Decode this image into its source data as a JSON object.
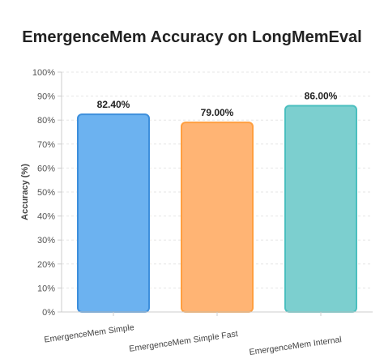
{
  "chart_data": {
    "type": "bar",
    "title": "EmergenceMem Accuracy on LongMemEval",
    "xlabel": "",
    "ylabel": "Accuracy (%)",
    "ylim": [
      0,
      100
    ],
    "yticks": [
      0,
      10,
      20,
      30,
      40,
      50,
      60,
      70,
      80,
      90,
      100
    ],
    "ytick_suffix": "%",
    "grid": true,
    "legend": "none",
    "categories": [
      "EmergenceMem Simple",
      "EmergenceMem Simple Fast",
      "EmergenceMem Internal"
    ],
    "values": [
      82.4,
      79.0,
      86.0
    ],
    "data_labels": [
      "82.40%",
      "79.00%",
      "86.00%"
    ],
    "bar_fill_colors": [
      "#6cb2f0",
      "#ffb474",
      "#7ccfcf"
    ],
    "bar_stroke_colors": [
      "#3d8fdc",
      "#ff9f40",
      "#4bbfbf"
    ],
    "gridline_color": "#e6e6e6",
    "axis_color": "#cccccc"
  }
}
